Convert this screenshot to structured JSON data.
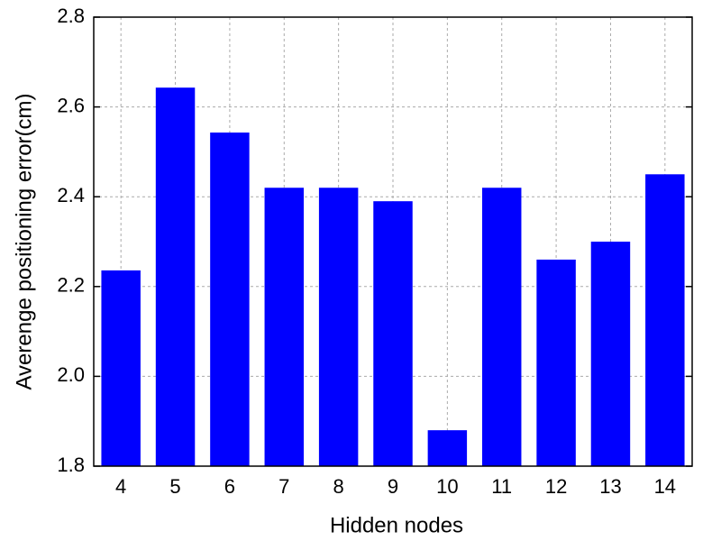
{
  "chart_data": {
    "type": "bar",
    "x_label": "Hidden nodes",
    "y_label": "Averenge positioning error(cm)",
    "categories": [
      "4",
      "5",
      "6",
      "7",
      "8",
      "9",
      "10",
      "11",
      "12",
      "13",
      "14"
    ],
    "values": [
      2.236,
      2.643,
      2.543,
      2.42,
      2.42,
      2.39,
      1.88,
      2.42,
      2.26,
      2.3,
      2.45
    ],
    "color": "#0000ff",
    "ylim": [
      1.8,
      2.8
    ],
    "yticks": [
      1.8,
      {
        "value": 2,
        "label": "2.0"
      },
      2.2,
      2.4,
      2.6,
      2.8
    ],
    "grid": true
  }
}
